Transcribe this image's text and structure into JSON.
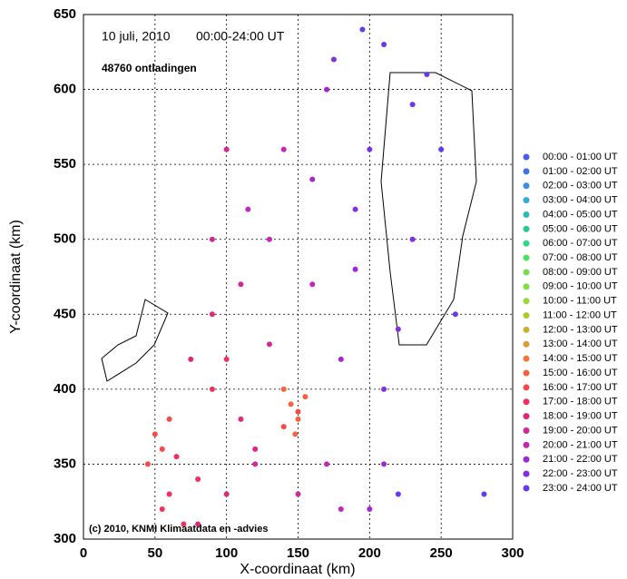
{
  "chart_data": {
    "type": "scatter",
    "title": "10 juli, 2010",
    "subtitle": "00:00-24:00 UT",
    "count_label": "48760 ontladingen",
    "annotation": "(c) 2010, KNMI Klimaatdata en -advies",
    "xlabel": "X-coordinaat (km)",
    "ylabel": "Y-coordinaat (km)",
    "xlim": [
      0,
      300
    ],
    "xticks": [
      0,
      50,
      100,
      150,
      200,
      250,
      300
    ],
    "ylim": [
      300,
      650
    ],
    "yticks": [
      300,
      350,
      400,
      450,
      500,
      550,
      600,
      650
    ],
    "grid": true,
    "legend": "right",
    "series": [
      {
        "name": "00:00 - 01:00 UT",
        "color": "#4a5ce8",
        "x": [],
        "values": []
      },
      {
        "name": "01:00 - 02:00 UT",
        "color": "#3f74e0",
        "x": [],
        "values": []
      },
      {
        "name": "02:00 - 03:00 UT",
        "color": "#3c8ee0",
        "x": [],
        "values": []
      },
      {
        "name": "03:00 - 04:00 UT",
        "color": "#3aa8d8",
        "x": [],
        "values": []
      },
      {
        "name": "04:00 - 05:00 UT",
        "color": "#30b8b8",
        "x": [],
        "values": []
      },
      {
        "name": "05:00 - 06:00 UT",
        "color": "#28c898",
        "x": [],
        "values": []
      },
      {
        "name": "06:00 - 07:00 UT",
        "color": "#30d880",
        "x": [],
        "values": []
      },
      {
        "name": "07:00 - 08:00 UT",
        "color": "#50e060",
        "x": [],
        "values": []
      },
      {
        "name": "08:00 - 09:00 UT",
        "color": "#70e050",
        "x": [],
        "values": []
      },
      {
        "name": "09:00 - 10:00 UT",
        "color": "#80e040",
        "x": [],
        "values": []
      },
      {
        "name": "10:00 - 11:00 UT",
        "color": "#98d838",
        "x": [],
        "values": []
      },
      {
        "name": "11:00 - 12:00 UT",
        "color": "#b0c830",
        "x": [],
        "values": []
      },
      {
        "name": "12:00 - 13:00 UT",
        "color": "#c8b030",
        "x": [],
        "values": []
      },
      {
        "name": "13:00 - 14:00 UT",
        "color": "#e09838",
        "x": [],
        "values": []
      },
      {
        "name": "14:00 - 15:00 UT",
        "color": "#f07838",
        "x": [],
        "values": []
      },
      {
        "name": "15:00 - 16:00 UT",
        "color": "#f86040",
        "x": [
          145,
          150,
          140,
          148,
          155
        ],
        "values": [
          390,
          380,
          400,
          370,
          395
        ]
      },
      {
        "name": "16:00 - 17:00 UT",
        "color": "#f84848",
        "x": [
          50,
          55,
          60,
          45,
          150,
          140
        ],
        "values": [
          370,
          360,
          380,
          350,
          385,
          375
        ]
      },
      {
        "name": "17:00 - 18:00 UT",
        "color": "#f03060",
        "x": [
          60,
          70,
          55,
          80,
          65,
          90,
          100
        ],
        "values": [
          330,
          310,
          320,
          340,
          355,
          400,
          420
        ]
      },
      {
        "name": "18:00 - 19:00 UT",
        "color": "#e02878",
        "x": [
          80,
          100,
          120,
          90,
          110,
          75
        ],
        "values": [
          310,
          330,
          360,
          450,
          380,
          420
        ]
      },
      {
        "name": "19:00 - 20:00 UT",
        "color": "#d02898",
        "x": [
          110,
          130,
          90,
          120,
          150,
          100
        ],
        "values": [
          470,
          430,
          500,
          350,
          330,
          560
        ]
      },
      {
        "name": "20:00 - 21:00 UT",
        "color": "#c028b8",
        "x": [
          140,
          130,
          160,
          115,
          170,
          180
        ],
        "values": [
          560,
          500,
          470,
          520,
          350,
          320
        ]
      },
      {
        "name": "21:00 - 22:00 UT",
        "color": "#a028d0",
        "x": [
          170,
          160,
          190,
          200,
          180,
          210
        ],
        "values": [
          600,
          540,
          480,
          320,
          420,
          350
        ]
      },
      {
        "name": "22:00 - 23:00 UT",
        "color": "#8030e0",
        "x": [
          200,
          190,
          220,
          210,
          175,
          230
        ],
        "values": [
          560,
          520,
          440,
          400,
          620,
          500
        ]
      },
      {
        "name": "23:00 - 24:00 UT",
        "color": "#6838f0",
        "x": [
          210,
          230,
          250,
          260,
          220,
          280,
          240,
          195
        ],
        "values": [
          630,
          590,
          560,
          450,
          330,
          330,
          610,
          640
        ]
      }
    ]
  }
}
